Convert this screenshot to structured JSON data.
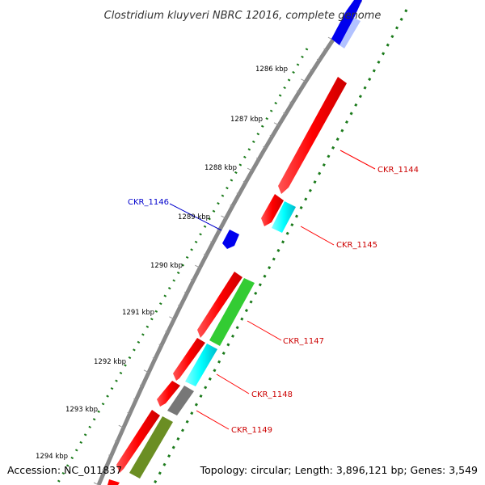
{
  "title": "Clostridium kluyveri NBRC 12016, complete genome",
  "footer": {
    "accession": "Accession: NC_011837",
    "summary": "Topology: circular; Length: 3,896,121 bp; Genes: 3,549"
  },
  "ticks": [
    "1286 kbp",
    "1287 kbp",
    "1288 kbp",
    "1289 kbp",
    "1290 kbp",
    "1291 kbp",
    "1292 kbp",
    "1293 kbp",
    "1294 kbp"
  ],
  "genes": [
    {
      "label": "CKR_1144",
      "color": "#ff0000",
      "strand": "plus"
    },
    {
      "label": "CKR_1145",
      "color": "#ff0000",
      "strand": "plus"
    },
    {
      "label": "CKR_1146",
      "color": "#0000cc",
      "strand": "minus"
    },
    {
      "label": "CKR_1147",
      "color": "#ff0000",
      "strand": "plus"
    },
    {
      "label": "CKR_1148",
      "color": "#ff0000",
      "strand": "plus"
    },
    {
      "label": "CKR_1149",
      "color": "#ff0000",
      "strand": "plus"
    }
  ],
  "colors": {
    "backbone": "#888888",
    "cds": "#ff0000",
    "cds_minus": "#0000ff",
    "trna": "#00ffff",
    "green": "#33cc33",
    "olive": "#6b8e23",
    "gray": "#777777",
    "gc_dots": "#1a7a1a"
  }
}
